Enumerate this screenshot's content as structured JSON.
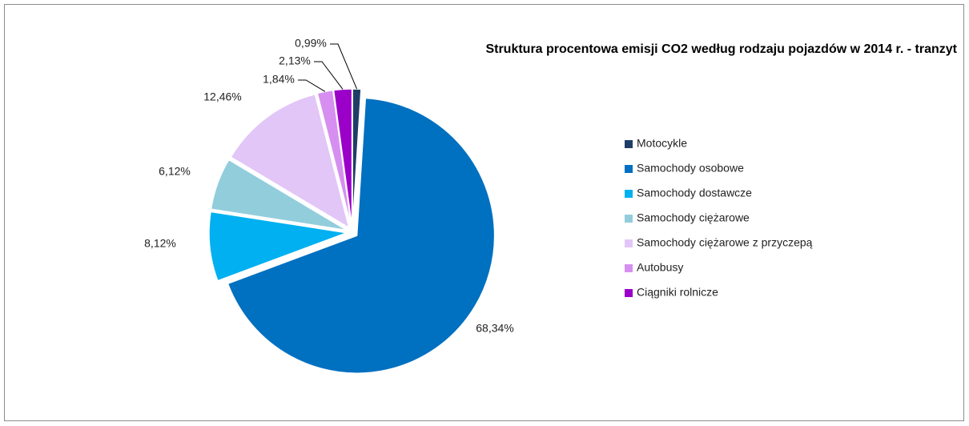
{
  "chart_data": {
    "type": "pie",
    "title": "Struktura procentowa emisji CO2 według rodzaju pojazdów w 2014 r. - tranzyt",
    "categories": [
      "Motocykle",
      "Samochody osobowe",
      "Samochody dostawcze",
      "Samochody ciężarowe",
      "Samochody ciężarowe z przyczepą",
      "Autobusy",
      "Ciągniki rolnicze"
    ],
    "values": [
      0.99,
      68.34,
      8.12,
      6.12,
      12.46,
      1.84,
      2.13
    ],
    "value_labels": [
      "0,99%",
      "68,34%",
      "8,12%",
      "6,12%",
      "12,46%",
      "1,84%",
      "2,13%"
    ],
    "colors": [
      "#1f3d66",
      "#0070c0",
      "#00b0f0",
      "#92cddc",
      "#e2c6f7",
      "#d68ff0",
      "#9b00c9"
    ],
    "legend": "right"
  }
}
